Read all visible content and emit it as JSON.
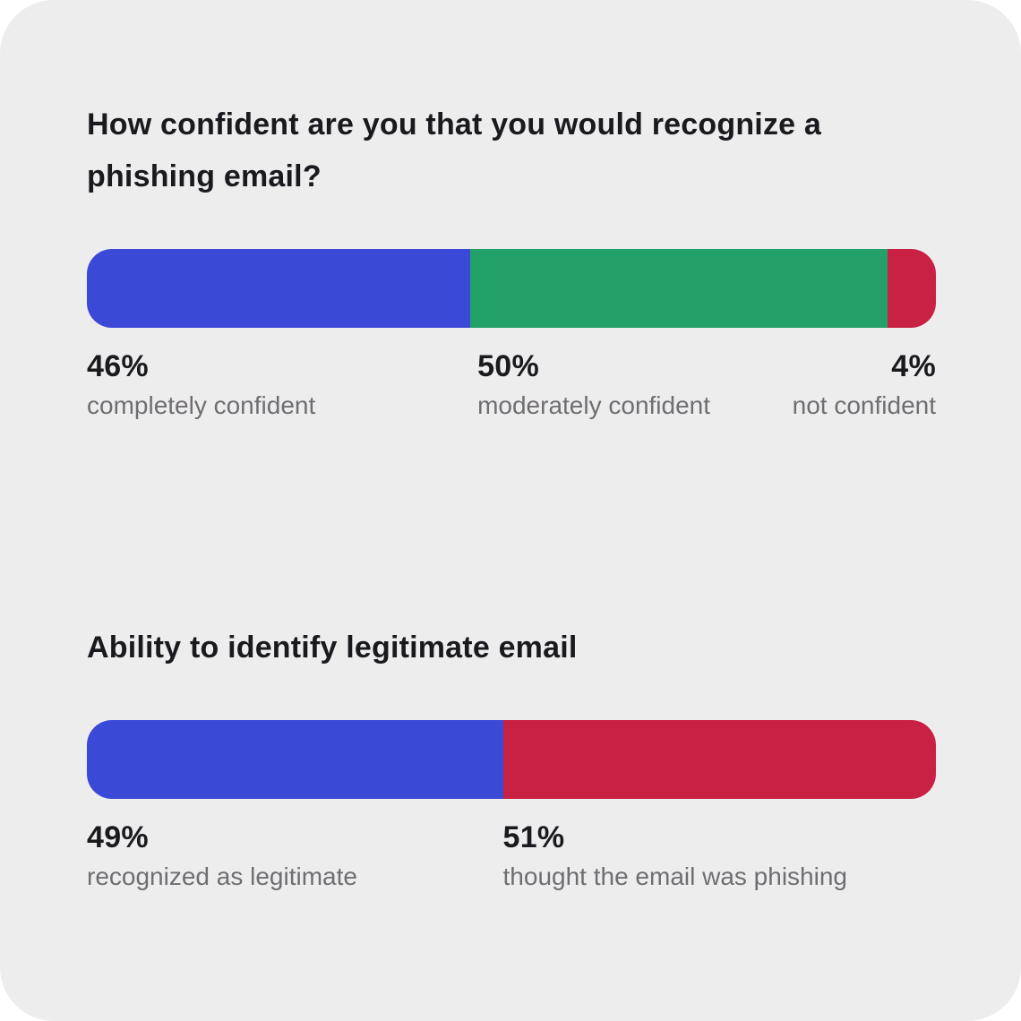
{
  "page": {
    "background": "#ffffff",
    "card_background": "#eeedee",
    "title_color": "#1a191e",
    "percent_color": "#1a191e",
    "label_color": "#6f6d71"
  },
  "chart_data": [
    {
      "type": "bar",
      "stacked": true,
      "orientation": "horizontal",
      "unit": "%",
      "title": "How confident are you that you would recognize a\nphishing email?",
      "segments": [
        {
          "label": "completely confident",
          "value": 46,
          "color": "#3b49d7",
          "label_align": "left"
        },
        {
          "label": "moderately confident",
          "value": 50,
          "color": "#22a169",
          "label_align": "left"
        },
        {
          "label": "not confident",
          "value": 4,
          "color": "#c92143",
          "label_align": "right"
        }
      ]
    },
    {
      "type": "bar",
      "stacked": true,
      "orientation": "horizontal",
      "unit": "%",
      "title": "Ability to identify legitimate email",
      "segments": [
        {
          "label": "recognized as legitimate",
          "value": 49,
          "color": "#3b49d7",
          "label_align": "left"
        },
        {
          "label": "thought the email was phishing",
          "value": 51,
          "color": "#c92143",
          "label_align": "left"
        }
      ]
    }
  ]
}
